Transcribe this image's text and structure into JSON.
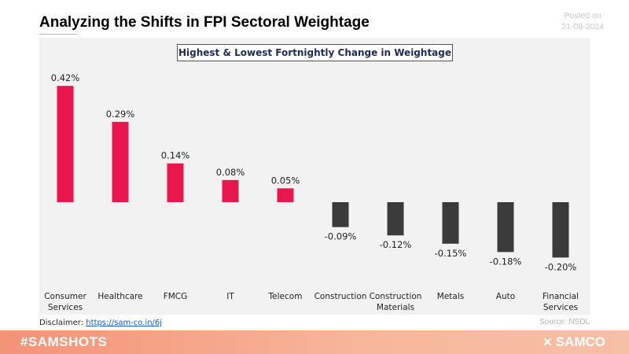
{
  "header": {
    "title": "Analyzing the Shifts in FPI Sectoral Weightage",
    "posted_label": "Posted on",
    "posted_date": "21-08-2024"
  },
  "colors": {
    "positive": "#e8184f",
    "negative": "#3b3b3b",
    "panel_bg": "#f2f2f2",
    "footer": "#f39378"
  },
  "chart_data": {
    "type": "bar",
    "title": "Highest & Lowest Fortnightly Change in Weightage",
    "categories": [
      [
        "Consumer",
        "Services"
      ],
      [
        "Healthcare"
      ],
      [
        "FMCG"
      ],
      [
        "IT"
      ],
      [
        "Telecom"
      ],
      [
        "Construction"
      ],
      [
        "Construction",
        "Materials"
      ],
      [
        "Metals"
      ],
      [
        "Auto"
      ],
      [
        "Financial",
        "Services"
      ]
    ],
    "values": [
      0.42,
      0.29,
      0.14,
      0.08,
      0.05,
      -0.09,
      -0.12,
      -0.15,
      -0.18,
      -0.2
    ],
    "value_labels": [
      "0.42%",
      "0.29%",
      "0.14%",
      "0.08%",
      "0.05%",
      "-0.09%",
      "-0.12%",
      "-0.15%",
      "-0.18%",
      "-0.20%"
    ],
    "unit": "%",
    "ylim": [
      -0.33,
      0.45
    ],
    "grid": false
  },
  "footer": {
    "disclaimer_label": "Disclaimer:",
    "disclaimer_link": "https://sam-co.in/6j",
    "source": "Source: NSDL",
    "hashtag": "#SAMSHOTS",
    "brand": "SAMCO",
    "brand_icon": "samco-logo-icon"
  }
}
